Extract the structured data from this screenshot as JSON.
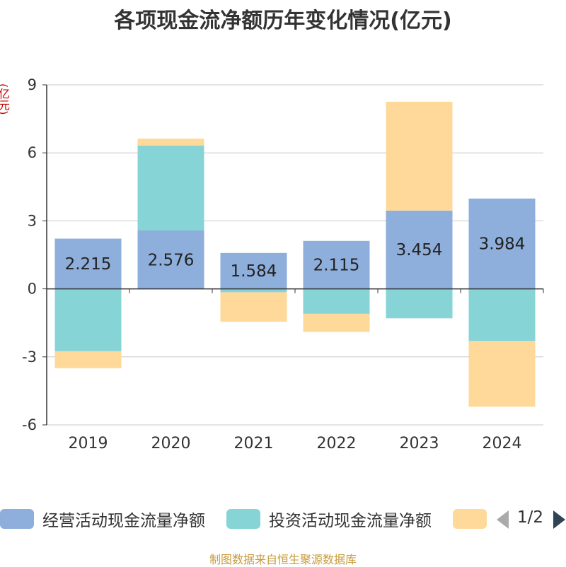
{
  "title": "各项现金流净额历年变化情况(亿元)",
  "unit_label": "(亿元)",
  "source": "制图数据来自恒生聚源数据库",
  "legend": {
    "items": [
      {
        "label": "经营活动现金流量净额",
        "color": "#8eaedb"
      },
      {
        "label": "投资活动现金流量净额",
        "color": "#86d4d6"
      },
      {
        "label": "",
        "color": "#fed99a"
      }
    ],
    "page_indicator": "1/2"
  },
  "chart_data": {
    "type": "bar",
    "stacked": true,
    "categories": [
      "2019",
      "2020",
      "2021",
      "2022",
      "2023",
      "2024"
    ],
    "series": [
      {
        "name": "经营活动现金流量净额",
        "color": "#8eaedb",
        "values": [
          2.215,
          2.576,
          1.584,
          2.115,
          3.454,
          3.984
        ],
        "labels": [
          "2.215",
          "2.576",
          "1.584",
          "2.115",
          "3.454",
          "3.984"
        ]
      },
      {
        "name": "投资活动现金流量净额",
        "color": "#86d4d6",
        "values": [
          -2.75,
          3.75,
          -0.15,
          -1.1,
          -1.3,
          -2.3
        ]
      },
      {
        "color": "#fed99a",
        "values": [
          -0.75,
          0.3,
          -1.3,
          -0.8,
          4.8,
          -2.9
        ]
      }
    ],
    "ylim": [
      -6,
      9
    ],
    "yticks": [
      -6,
      -3,
      0,
      3,
      6,
      9
    ],
    "grid": true
  }
}
